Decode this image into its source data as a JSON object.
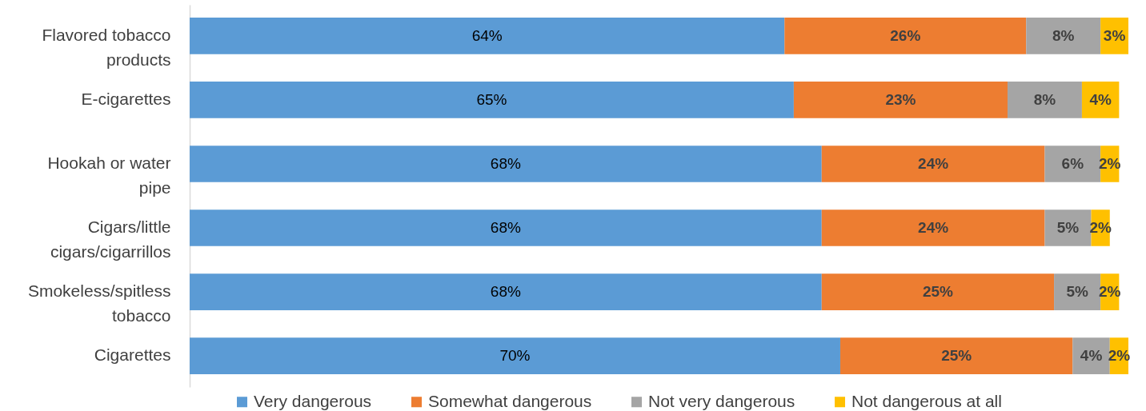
{
  "chart_data": {
    "type": "bar",
    "orientation": "horizontal",
    "stacked": true,
    "legend": "bottom",
    "grid": false,
    "categories": [
      "Flavored tobacco products",
      "E-cigarettes",
      "Hookah or water pipe",
      "Cigars/little cigars/cigarrillos",
      "Smokeless/spitless tobacco",
      "Cigarettes"
    ],
    "series": [
      {
        "name": "Very dangerous",
        "color": "#5b9bd5",
        "values": [
          64,
          65,
          68,
          68,
          68,
          70
        ],
        "value_labels": [
          "64%",
          "65%",
          "68%",
          "68%",
          "68%",
          "70%"
        ]
      },
      {
        "name": "Somewhat dangerous",
        "color": "#ed7d31",
        "values": [
          26,
          23,
          24,
          24,
          25,
          25
        ],
        "value_labels": [
          "26%",
          "23%",
          "24%",
          "24%",
          "25%",
          "25%"
        ]
      },
      {
        "name": "Not very dangerous",
        "color": "#a5a5a5",
        "values": [
          8,
          8,
          6,
          5,
          5,
          4
        ],
        "value_labels": [
          "8%",
          "8%",
          "6%",
          "5%",
          "5%",
          "4%"
        ]
      },
      {
        "name": "Not dangerous at all",
        "color": "#ffc000",
        "values": [
          3,
          4,
          2,
          2,
          2,
          2
        ],
        "value_labels": [
          "3%",
          "4%",
          "2%",
          "2%",
          "2%",
          "2%"
        ]
      }
    ]
  }
}
